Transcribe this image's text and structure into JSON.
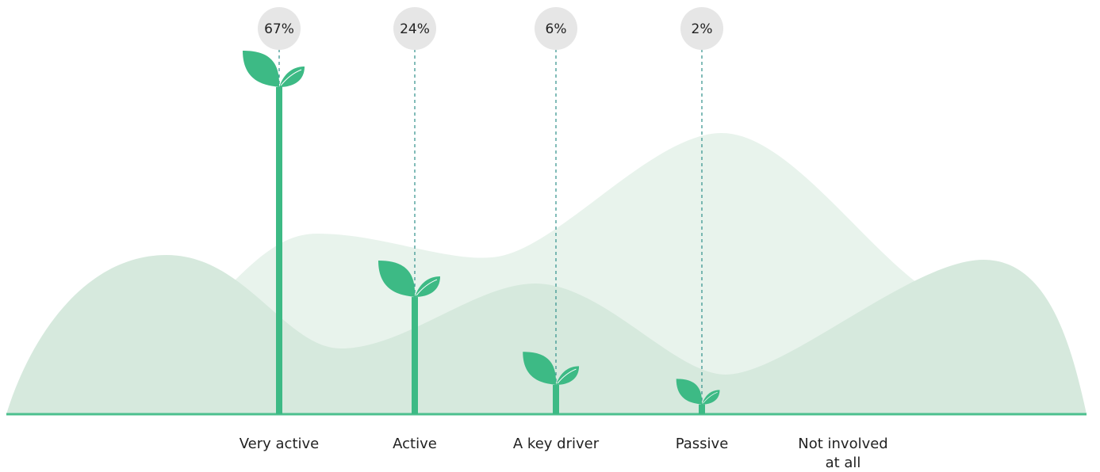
{
  "chart_data": {
    "type": "plant",
    "categories": [
      "Very active",
      "Active",
      "A key driver",
      "Passive",
      "Not involved at all"
    ],
    "values": [
      67,
      24,
      6,
      2,
      null
    ],
    "value_labels": [
      "67%",
      "24%",
      "6%",
      "2%",
      null
    ],
    "color": "#3dba85"
  }
}
